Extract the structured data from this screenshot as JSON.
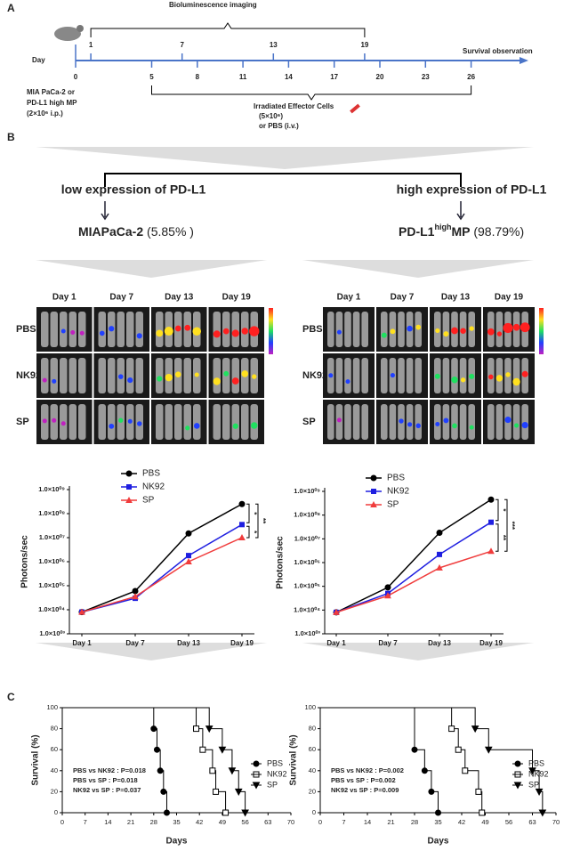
{
  "panel_a": {
    "label": "A",
    "imaging_label": "Bioluminescence imaging",
    "day_label": "Day",
    "survival_label": "Survival observation",
    "imaging_days": [
      1,
      7,
      13,
      19
    ],
    "treatment_days": [
      0,
      5,
      8,
      11,
      14,
      17,
      20,
      23,
      26
    ],
    "tumor_lines": [
      "MIA PaCa-2 or",
      "PD-L1 high MP",
      "(2×10⁶ i.p.)"
    ],
    "effector_lines": [
      "Irradiated Effector Cells",
      "(5×10⁶)",
      "or PBS (i.v.)"
    ]
  },
  "panel_b": {
    "label": "B",
    "low": "low expression of PD-L1",
    "high": "high expression of PD-L1",
    "low_name": "MIAPaCa-2",
    "low_pct": "(5.85% )",
    "high_name_pre": "PD-L1",
    "high_name_sup": "high",
    "high_name_post": "MP",
    "high_pct": "(98.79%)",
    "imaging": [
      {
        "days": [
          "Day 1",
          "Day 7",
          "Day 13",
          "Day 19"
        ],
        "groups": [
          "PBS",
          "NK92",
          "SP"
        ]
      },
      {
        "days": [
          "Day 1",
          "Day 7",
          "Day 13",
          "Day 19"
        ],
        "groups": [
          "PBS",
          "NK92",
          "SP"
        ]
      }
    ]
  },
  "panel_c": {
    "label": "C"
  },
  "chart_data": [
    {
      "type": "line",
      "ylabel": "Photons/sec",
      "log_scale": true,
      "categories": [
        "Day 1",
        "Day 7",
        "Day 13",
        "Day 19"
      ],
      "ylim": [
        1000,
        1000000000
      ],
      "yticks": [
        {
          "value": 1000,
          "label": "1.0×10⁰³"
        },
        {
          "value": 10000,
          "label": "1.0×10⁰⁴"
        },
        {
          "value": 100000,
          "label": "1.0×10⁰⁵"
        },
        {
          "value": 1000000,
          "label": "1.0×10⁰⁶"
        },
        {
          "value": 10000000,
          "label": "1.0×10⁰⁷"
        },
        {
          "value": 100000000,
          "label": "1.0×10⁰⁸"
        },
        {
          "value": 1000000000,
          "label": "1.0×10⁰⁹"
        }
      ],
      "series": [
        {
          "name": "PBS",
          "color": "#000000",
          "values": [
            8000,
            60000,
            15000000,
            250000000
          ]
        },
        {
          "name": "NK92",
          "color": "#1f1fe0",
          "values": [
            8000,
            30000,
            1800000,
            35000000
          ]
        },
        {
          "name": "SP",
          "color": "#f03c3c",
          "values": [
            8000,
            35000,
            1000000,
            10000000
          ]
        }
      ],
      "annotations": [
        "*",
        "*",
        "**"
      ]
    },
    {
      "type": "line",
      "ylabel": "Photons/sec",
      "log_scale": true,
      "categories": [
        "Day 1",
        "Day 7",
        "Day 13",
        "Day 19"
      ],
      "ylim": [
        1000,
        1000000000
      ],
      "yticks": [
        {
          "value": 1000,
          "label": "1.0×10⁰³"
        },
        {
          "value": 10000,
          "label": "1.0×10⁰⁴"
        },
        {
          "value": 100000,
          "label": "1.0×10⁰⁵"
        },
        {
          "value": 1000000,
          "label": "1.0×10⁰⁶"
        },
        {
          "value": 10000000,
          "label": "1.0×10⁰⁷"
        },
        {
          "value": 100000000,
          "label": "1.0×10⁰⁸"
        },
        {
          "value": 1000000000,
          "label": "1.0×10⁰⁹"
        }
      ],
      "series": [
        {
          "name": "PBS",
          "color": "#000000",
          "values": [
            8000,
            90000,
            18000000,
            450000000
          ]
        },
        {
          "name": "NK92",
          "color": "#1f1fe0",
          "values": [
            8000,
            50000,
            2200000,
            50000000
          ]
        },
        {
          "name": "SP",
          "color": "#f03c3c",
          "values": [
            8000,
            40000,
            600000,
            3000000
          ]
        }
      ],
      "annotations": [
        "*",
        "**",
        "***"
      ]
    },
    {
      "type": "step",
      "xlabel": "Days",
      "ylabel": "Survival (%)",
      "xlim": [
        0,
        70
      ],
      "xticks": [
        0,
        7,
        14,
        21,
        28,
        35,
        42,
        49,
        56,
        63,
        70
      ],
      "ylim": [
        0,
        100
      ],
      "yticks": [
        0,
        20,
        40,
        60,
        80,
        100
      ],
      "series": [
        {
          "name": "PBS",
          "color": "#000000",
          "marker": "circle",
          "x": [
            0,
            28,
            29,
            30,
            31,
            32
          ],
          "values": [
            100,
            80,
            60,
            40,
            20,
            0
          ]
        },
        {
          "name": "NK92",
          "color": "#000000",
          "marker": "square-open",
          "x": [
            0,
            41,
            43,
            46,
            47,
            50
          ],
          "values": [
            100,
            80,
            60,
            40,
            20,
            0
          ]
        },
        {
          "name": "SP",
          "color": "#000000",
          "marker": "triangle-down",
          "x": [
            0,
            45,
            49,
            52,
            54,
            56
          ],
          "values": [
            100,
            80,
            60,
            40,
            20,
            0
          ]
        }
      ],
      "stats": [
        "PBS vs NK92 : P=0.018",
        "PBS vs SP : P=0.018",
        "NK92 vs SP : P=0.037"
      ]
    },
    {
      "type": "step",
      "xlabel": "Days",
      "ylabel": "Survival (%)",
      "xlim": [
        0,
        70
      ],
      "xticks": [
        0,
        7,
        14,
        21,
        28,
        35,
        42,
        49,
        56,
        63,
        70
      ],
      "ylim": [
        0,
        100
      ],
      "yticks": [
        0,
        20,
        40,
        60,
        80,
        100
      ],
      "series": [
        {
          "name": "PBS",
          "color": "#000000",
          "marker": "circle",
          "x": [
            0,
            28,
            31,
            33,
            35
          ],
          "values": [
            100,
            60,
            40,
            20,
            0
          ]
        },
        {
          "name": "NK92",
          "color": "#000000",
          "marker": "square-open",
          "x": [
            0,
            39,
            41,
            43,
            47,
            48
          ],
          "values": [
            100,
            80,
            60,
            40,
            20,
            0
          ]
        },
        {
          "name": "SP",
          "color": "#000000",
          "marker": "triangle-down",
          "x": [
            0,
            46,
            50,
            63,
            65,
            66
          ],
          "values": [
            100,
            80,
            60,
            40,
            20,
            0
          ]
        }
      ],
      "stats": [
        "PBS vs NK92 : P=0.002",
        "PBS vs SP : P=0.002",
        "NK92 vs SP : P=0.009"
      ]
    }
  ]
}
